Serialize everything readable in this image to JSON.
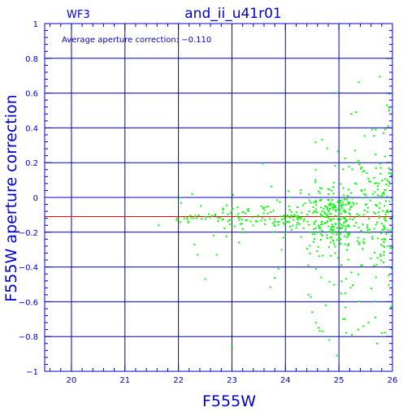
{
  "chart_data": {
    "type": "scatter",
    "title": "and_ii_u41r01",
    "corner_label": "WF3",
    "annotation": "Average aperture correction: −0.110",
    "xlabel": "F555W",
    "ylabel": "F555W aperture correction",
    "xlim": [
      19.5,
      26
    ],
    "ylim": [
      -1,
      1
    ],
    "x_ticks": [
      20,
      21,
      22,
      23,
      24,
      25,
      26
    ],
    "y_ticks": [
      1,
      0.8,
      0.6,
      0.4,
      0.2,
      0,
      -0.2,
      -0.4,
      -0.6,
      -0.8,
      -1
    ],
    "y_tick_labels": [
      "1",
      "0.8",
      "0.6",
      "0.4",
      "0.2",
      "0",
      "−0.2",
      "−0.4",
      "−0.6",
      "−0.8",
      "−1"
    ],
    "grid": true,
    "reference_line": {
      "y": -0.11,
      "color": "#ff0000"
    },
    "colors": {
      "frame": "#0000cc",
      "points": "#00ff00",
      "text": "#0000cc"
    },
    "point_generation": {
      "seed": 424242,
      "groups": [
        {
          "n": 70,
          "x_min": 21.9,
          "x_max": 23.4,
          "y_center": -0.11,
          "y_spread": 0.035,
          "outlier_frac": 0.12,
          "outlier_spread": 0.12
        },
        {
          "n": 90,
          "x_min": 23.4,
          "x_max": 24.4,
          "y_center": -0.11,
          "y_spread": 0.05,
          "outlier_frac": 0.15,
          "outlier_spread": 0.18
        },
        {
          "n": 260,
          "x_min": 24.4,
          "x_max": 25.2,
          "y_center": -0.13,
          "y_spread": 0.09,
          "outlier_frac": 0.3,
          "outlier_spread": 0.3
        },
        {
          "n": 190,
          "x_min": 25.2,
          "x_max": 26.0,
          "y_center": -0.12,
          "y_spread": 0.16,
          "outlier_frac": 0.35,
          "outlier_spread": 0.35
        }
      ]
    },
    "points": [
      [
        21.63,
        -0.16
      ],
      [
        21.97,
        -0.12
      ],
      [
        22.3,
        -0.27
      ],
      [
        22.36,
        -0.33
      ],
      [
        22.5,
        -0.47
      ],
      [
        23.0,
        -0.86
      ],
      [
        23.13,
        -0.26
      ],
      [
        23.2,
        -0.2
      ],
      [
        23.87,
        -0.41
      ],
      [
        24.43,
        -0.56
      ],
      [
        24.5,
        -0.66
      ],
      [
        24.57,
        -0.72
      ],
      [
        24.62,
        -0.75
      ],
      [
        24.7,
        -0.77
      ],
      [
        24.75,
        -0.62
      ],
      [
        24.82,
        -0.82
      ],
      [
        24.96,
        -0.91
      ],
      [
        25.08,
        -0.7
      ],
      [
        25.12,
        -0.55
      ],
      [
        25.23,
        0.48
      ],
      [
        25.3,
        0.27
      ],
      [
        25.38,
        0.19
      ],
      [
        25.55,
        -0.72
      ],
      [
        25.68,
        -0.69
      ],
      [
        25.8,
        -0.78
      ],
      [
        25.83,
        0.37
      ],
      [
        25.86,
        0.39
      ],
      [
        25.9,
        0.53
      ],
      [
        25.94,
        0.5
      ],
      [
        25.97,
        -0.63
      ],
      [
        25.78,
        0.17
      ],
      [
        25.67,
        0.08
      ],
      [
        25.93,
        -0.45
      ],
      [
        25.92,
        0.41
      ],
      [
        25.71,
        -0.84
      ],
      [
        25.36,
        -0.76
      ]
    ]
  }
}
